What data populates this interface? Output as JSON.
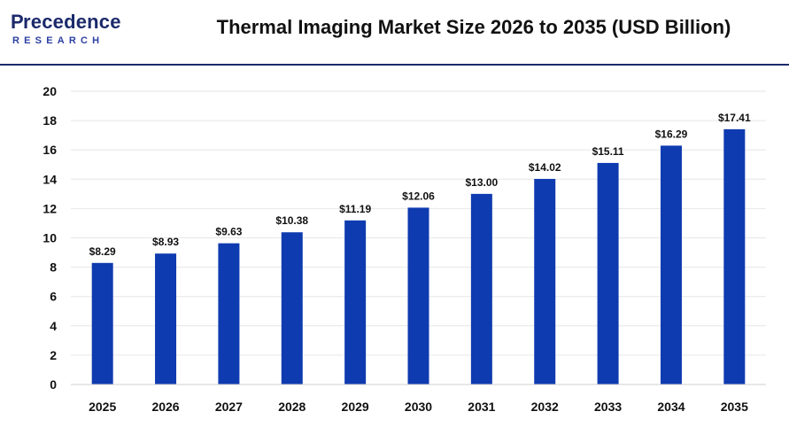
{
  "brand": {
    "name_main": "recedence",
    "name_initial": "P",
    "name_sub": "RESEARCH"
  },
  "colors": {
    "bar": "#0f3bb0",
    "brand": "#1b2a6b",
    "grid": "#e6e6e6",
    "text": "#111111"
  },
  "chart_data": {
    "type": "bar",
    "title": "Thermal Imaging Market Size 2026 to 2035 (USD Billion)",
    "categories": [
      "2025",
      "2026",
      "2027",
      "2028",
      "2029",
      "2030",
      "2031",
      "2032",
      "2033",
      "2034",
      "2035"
    ],
    "values": [
      8.29,
      8.93,
      9.63,
      10.38,
      11.19,
      12.06,
      13.0,
      14.02,
      15.11,
      16.29,
      17.41
    ],
    "data_labels": [
      "$8.29",
      "$8.93",
      "$9.63",
      "$10.38",
      "$11.19",
      "$12.06",
      "$13.00",
      "$14.02",
      "$15.11",
      "$16.29",
      "$17.41"
    ],
    "ylim": [
      0,
      20
    ],
    "yticks": [
      0,
      2,
      4,
      6,
      8,
      10,
      12,
      14,
      16,
      18,
      20
    ],
    "xlabel": "",
    "ylabel": "",
    "grid": true,
    "legend": "none"
  }
}
